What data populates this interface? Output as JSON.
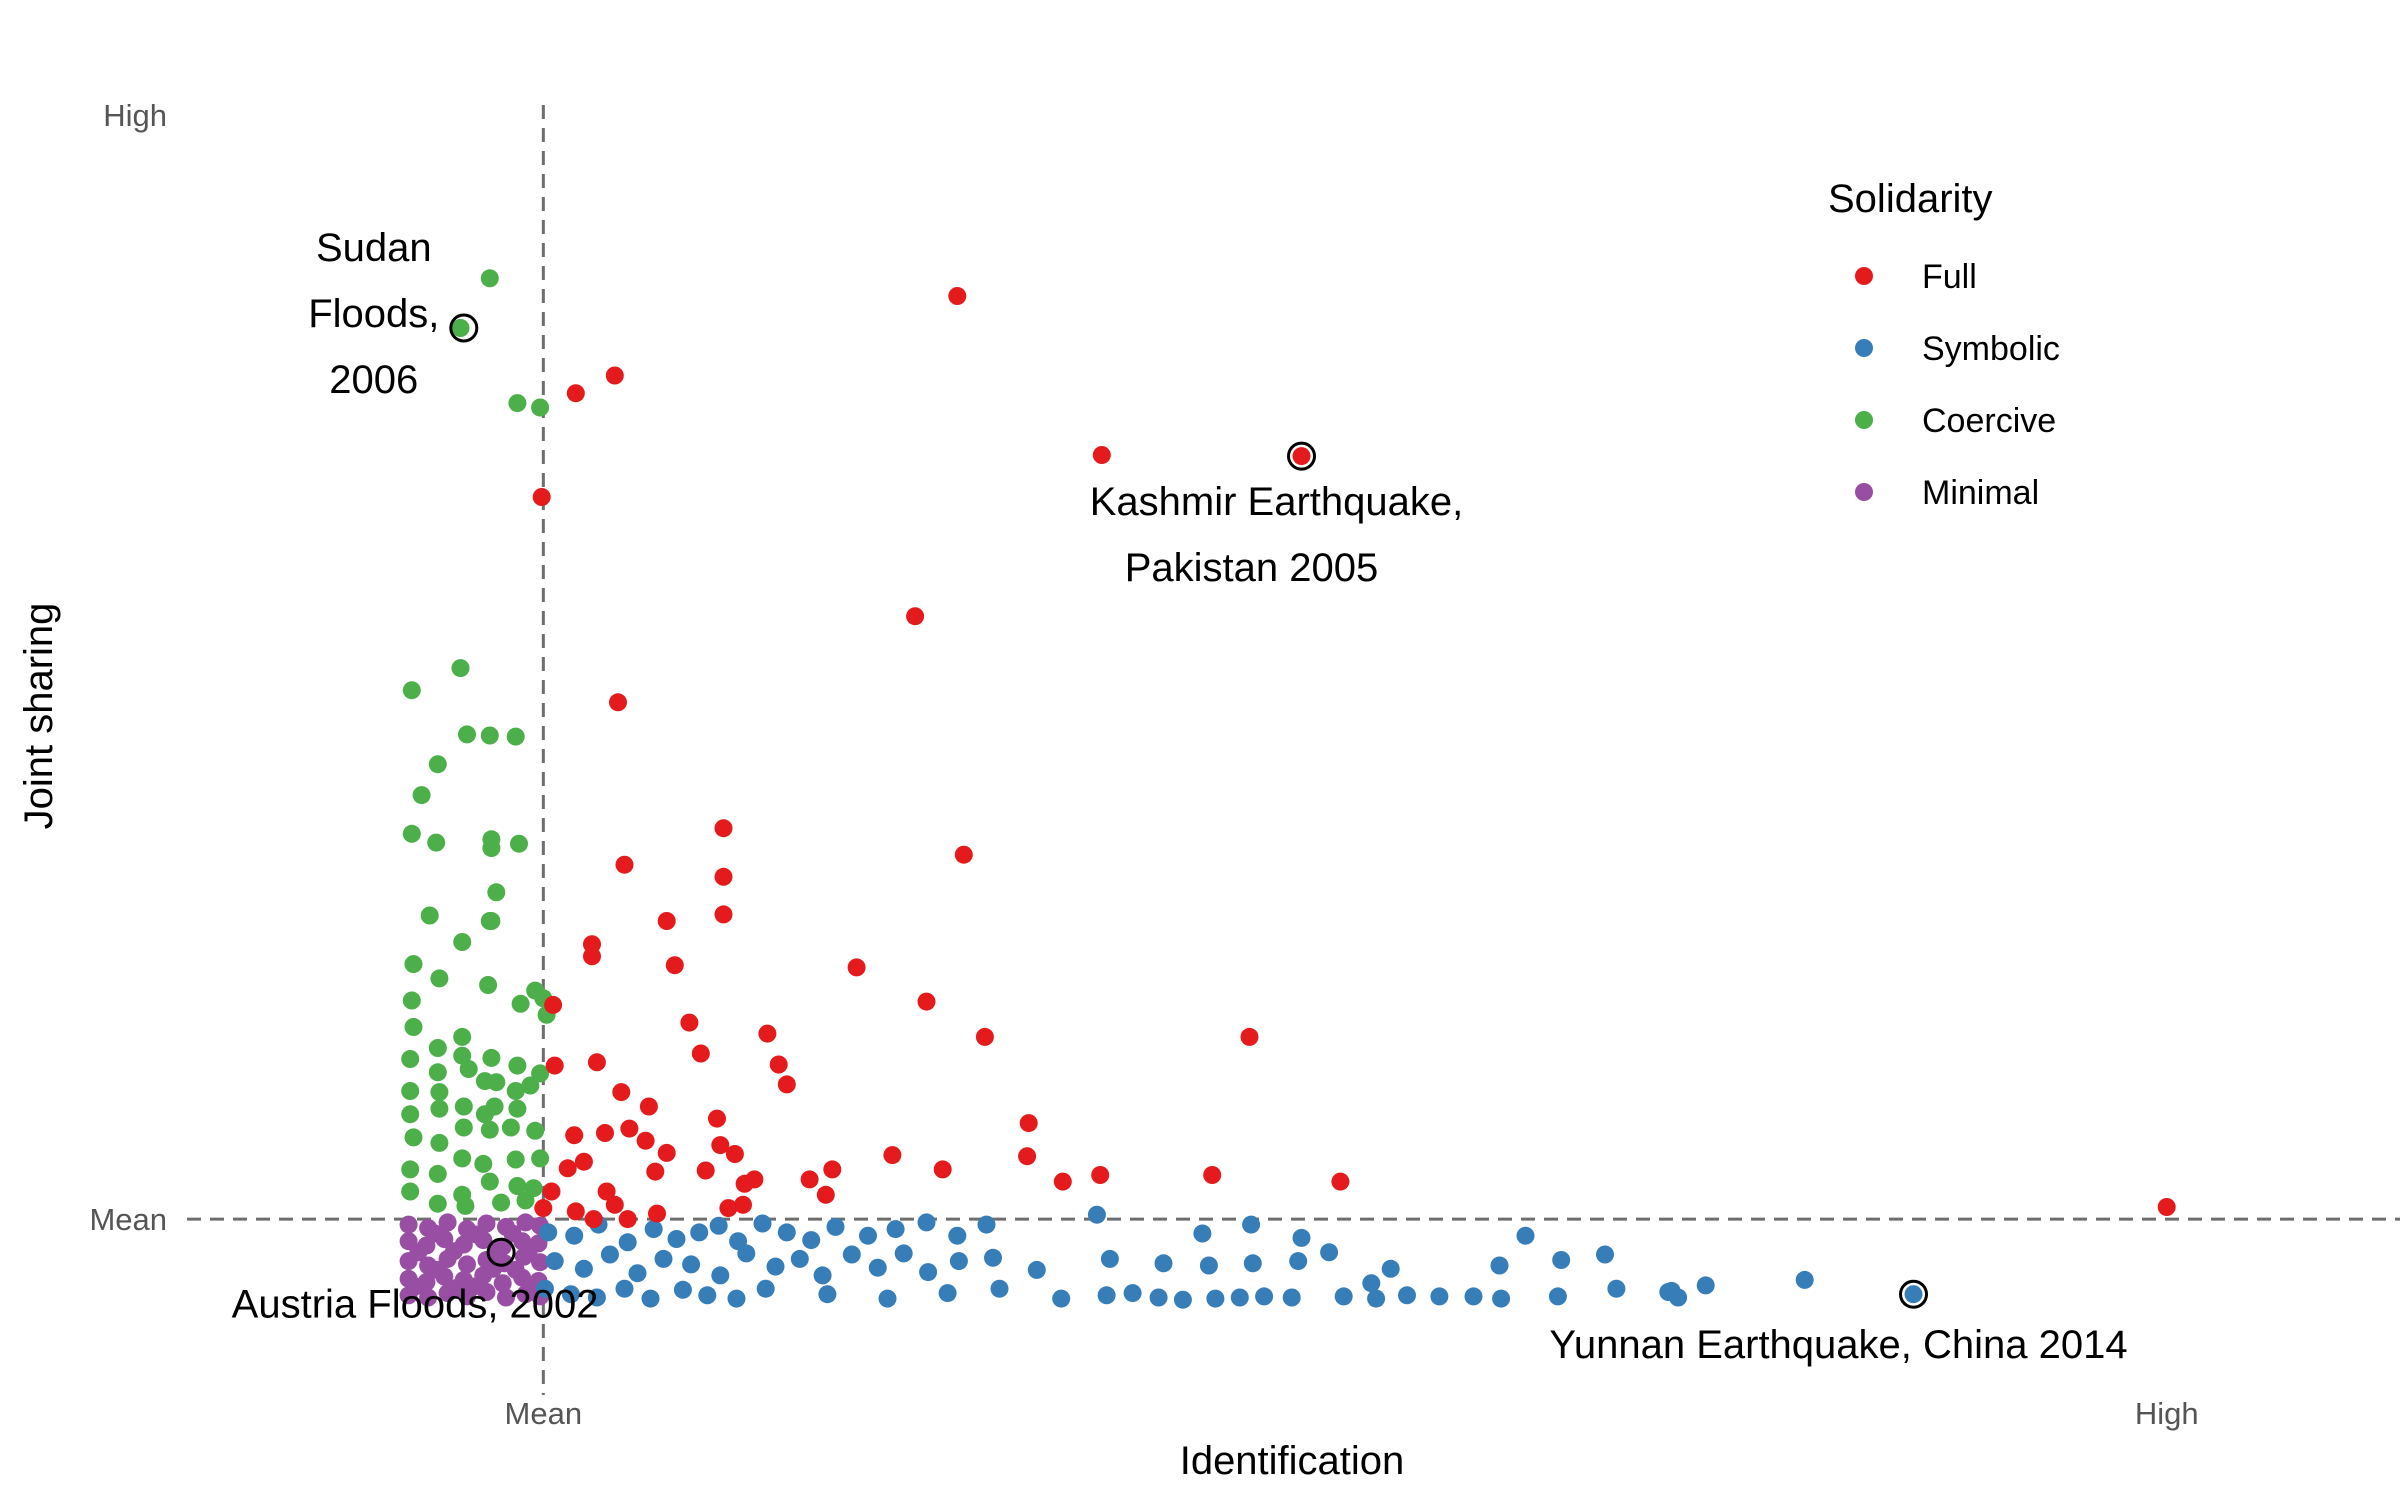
{
  "chart_data": {
    "type": "scatter",
    "title": "",
    "xlabel": "Identification",
    "ylabel": "Joint sharing",
    "x_ticks": [
      {
        "label": "Mean",
        "value": 0
      },
      {
        "label": "High",
        "value": 1
      }
    ],
    "y_ticks": [
      {
        "label": "Mean",
        "value": 0
      },
      {
        "label": "High",
        "value": 1
      }
    ],
    "xlim": [
      -0.2195,
      1.1437
    ],
    "ylim": [
      -0.1801,
      1.0633
    ],
    "grid": false,
    "reference_lines": [
      {
        "axis": "x",
        "value": 0,
        "style": "dashed"
      },
      {
        "axis": "y",
        "value": 0,
        "style": "dashed"
      }
    ],
    "legend": {
      "title": "Solidarity",
      "position": "top-right"
    },
    "colors": {
      "Full": "#E41A1C",
      "Symbolic": "#377EB8",
      "Coercive": "#4DAF4A",
      "Minimal": "#984EA3"
    },
    "series": [
      {
        "name": "Full",
        "points": [
          [
            0.255,
            0.836
          ],
          [
            0.044,
            0.764
          ],
          [
            0.02,
            0.748
          ],
          [
            0.344,
            0.692
          ],
          [
            0.467,
            0.691
          ],
          [
            -0.001,
            0.654
          ],
          [
            0.229,
            0.546
          ],
          [
            0.046,
            0.468
          ],
          [
            0.259,
            0.33
          ],
          [
            0.111,
            0.354
          ],
          [
            0.111,
            0.31
          ],
          [
            0.111,
            0.276
          ],
          [
            0.05,
            0.321
          ],
          [
            0.03,
            0.249
          ],
          [
            0.03,
            0.238
          ],
          [
            0.081,
            0.23
          ],
          [
            0.076,
            0.27
          ],
          [
            0.193,
            0.228
          ],
          [
            0.09,
            0.178
          ],
          [
            0.006,
            0.194
          ],
          [
            0.236,
            0.197
          ],
          [
            0.272,
            0.165
          ],
          [
            0.097,
            0.15
          ],
          [
            0.007,
            0.139
          ],
          [
            0.033,
            0.142
          ],
          [
            0.138,
            0.168
          ],
          [
            0.435,
            0.165
          ],
          [
            0.048,
            0.115
          ],
          [
            0.145,
            0.14
          ],
          [
            0.15,
            0.122
          ],
          [
            0.019,
            0.076
          ],
          [
            0.038,
            0.078
          ],
          [
            0.053,
            0.082
          ],
          [
            0.065,
            0.102
          ],
          [
            0.107,
            0.091
          ],
          [
            0.076,
            0.06
          ],
          [
            0.109,
            0.067
          ],
          [
            0.298,
            0.057
          ],
          [
            0.015,
            0.046
          ],
          [
            0.025,
            0.052
          ],
          [
            0.063,
            0.071
          ],
          [
            0.069,
            0.043
          ],
          [
            0.1,
            0.044
          ],
          [
            0.118,
            0.059
          ],
          [
            0.124,
            0.032
          ],
          [
            0.164,
            0.036
          ],
          [
            0.178,
            0.045
          ],
          [
            0.215,
            0.058
          ],
          [
            0.299,
            0.087
          ],
          [
            0.005,
            0.025
          ],
          [
            0.039,
            0.025
          ],
          [
            0.123,
            0.013
          ],
          [
            0.13,
            0.036
          ],
          [
            0.174,
            0.022
          ],
          [
            0.0,
            0.01
          ],
          [
            0.02,
            0.007
          ],
          [
            0.044,
            0.013
          ],
          [
            0.052,
            0.0
          ],
          [
            0.114,
            0.01
          ],
          [
            0.031,
            0.0
          ],
          [
            0.07,
            0.005
          ],
          [
            0.343,
            0.04
          ],
          [
            0.412,
            0.04
          ],
          [
            0.246,
            0.045
          ],
          [
            0.32,
            0.034
          ],
          [
            0.491,
            0.034
          ],
          [
            1.0,
            0.011
          ]
        ]
      },
      {
        "name": "Symbolic",
        "points": [
          [
            0.844,
            -0.068
          ],
          [
            0.003,
            -0.012
          ],
          [
            0.019,
            -0.015
          ],
          [
            0.034,
            -0.005
          ],
          [
            0.052,
            -0.021
          ],
          [
            0.068,
            -0.009
          ],
          [
            0.082,
            -0.018
          ],
          [
            0.096,
            -0.012
          ],
          [
            0.108,
            -0.006
          ],
          [
            0.12,
            -0.02
          ],
          [
            0.135,
            -0.004
          ],
          [
            0.15,
            -0.012
          ],
          [
            0.165,
            -0.019
          ],
          [
            0.18,
            -0.007
          ],
          [
            0.2,
            -0.015
          ],
          [
            0.217,
            -0.009
          ],
          [
            0.236,
            -0.003
          ],
          [
            0.255,
            -0.015
          ],
          [
            0.273,
            -0.005
          ],
          [
            0.341,
            0.004
          ],
          [
            0.406,
            -0.013
          ],
          [
            0.436,
            -0.005
          ],
          [
            0.467,
            -0.017
          ],
          [
            0.605,
            -0.015
          ],
          [
            0.007,
            -0.038
          ],
          [
            0.025,
            -0.045
          ],
          [
            0.041,
            -0.032
          ],
          [
            0.058,
            -0.049
          ],
          [
            0.074,
            -0.036
          ],
          [
            0.091,
            -0.041
          ],
          [
            0.109,
            -0.051
          ],
          [
            0.125,
            -0.031
          ],
          [
            0.143,
            -0.043
          ],
          [
            0.158,
            -0.036
          ],
          [
            0.172,
            -0.051
          ],
          [
            0.19,
            -0.032
          ],
          [
            0.206,
            -0.044
          ],
          [
            0.222,
            -0.031
          ],
          [
            0.237,
            -0.048
          ],
          [
            0.256,
            -0.038
          ],
          [
            0.277,
            -0.035
          ],
          [
            0.304,
            -0.046
          ],
          [
            0.349,
            -0.036
          ],
          [
            0.382,
            -0.04
          ],
          [
            0.41,
            -0.042
          ],
          [
            0.437,
            -0.04
          ],
          [
            0.465,
            -0.038
          ],
          [
            0.484,
            -0.03
          ],
          [
            0.589,
            -0.042
          ],
          [
            0.627,
            -0.037
          ],
          [
            0.654,
            -0.032
          ],
          [
            0.695,
            -0.065
          ],
          [
            0.716,
            -0.06
          ],
          [
            0.001,
            -0.063
          ],
          [
            0.017,
            -0.068
          ],
          [
            0.033,
            -0.071
          ],
          [
            0.05,
            -0.063
          ],
          [
            0.066,
            -0.072
          ],
          [
            0.086,
            -0.064
          ],
          [
            0.101,
            -0.069
          ],
          [
            0.119,
            -0.072
          ],
          [
            0.137,
            -0.063
          ],
          [
            0.175,
            -0.068
          ],
          [
            0.212,
            -0.072
          ],
          [
            0.249,
            -0.067
          ],
          [
            0.281,
            -0.063
          ],
          [
            0.319,
            -0.072
          ],
          [
            0.347,
            -0.069
          ],
          [
            0.363,
            -0.067
          ],
          [
            0.379,
            -0.071
          ],
          [
            0.394,
            -0.073
          ],
          [
            0.414,
            -0.072
          ],
          [
            0.429,
            -0.071
          ],
          [
            0.444,
            -0.07
          ],
          [
            0.461,
            -0.071
          ],
          [
            0.493,
            -0.07
          ],
          [
            0.513,
            -0.072
          ],
          [
            0.532,
            -0.069
          ],
          [
            0.552,
            -0.07
          ],
          [
            0.573,
            -0.07
          ],
          [
            0.59,
            -0.072
          ],
          [
            0.625,
            -0.07
          ],
          [
            0.661,
            -0.063
          ],
          [
            0.693,
            -0.066
          ],
          [
            0.777,
            -0.055
          ],
          [
            0.699,
            -0.071
          ],
          [
            0.51,
            -0.058
          ],
          [
            0.522,
            -0.045
          ]
        ]
      },
      {
        "name": "Coercive",
        "points": [
          [
            -0.033,
            0.852
          ],
          [
            -0.051,
            0.807
          ],
          [
            -0.016,
            0.739
          ],
          [
            -0.002,
            0.735
          ],
          [
            -0.051,
            0.499
          ],
          [
            -0.081,
            0.479
          ],
          [
            -0.047,
            0.439
          ],
          [
            -0.033,
            0.438
          ],
          [
            -0.017,
            0.437
          ],
          [
            -0.065,
            0.412
          ],
          [
            -0.075,
            0.384
          ],
          [
            -0.081,
            0.349
          ],
          [
            -0.066,
            0.341
          ],
          [
            -0.032,
            0.344
          ],
          [
            -0.032,
            0.336
          ],
          [
            -0.015,
            0.34
          ],
          [
            -0.029,
            0.296
          ],
          [
            -0.033,
            0.27
          ],
          [
            -0.05,
            0.251
          ],
          [
            -0.08,
            0.231
          ],
          [
            -0.064,
            0.218
          ],
          [
            -0.034,
            0.212
          ],
          [
            -0.005,
            0.207
          ],
          [
            -0.014,
            0.195
          ],
          [
            -0.081,
            0.198
          ],
          [
            -0.08,
            0.174
          ],
          [
            -0.05,
            0.165
          ],
          [
            -0.05,
            0.148
          ],
          [
            -0.032,
            0.146
          ],
          [
            -0.065,
            0.155
          ],
          [
            -0.065,
            0.133
          ],
          [
            -0.082,
            0.145
          ],
          [
            -0.046,
            0.136
          ],
          [
            -0.016,
            0.139
          ],
          [
            -0.002,
            0.132
          ],
          [
            -0.064,
            0.115
          ],
          [
            -0.082,
            0.116
          ],
          [
            -0.017,
            0.116
          ],
          [
            -0.029,
            0.124
          ],
          [
            -0.036,
            0.125
          ],
          [
            -0.008,
            0.121
          ],
          [
            -0.049,
            0.102
          ],
          [
            -0.064,
            0.1
          ],
          [
            -0.082,
            0.095
          ],
          [
            -0.03,
            0.102
          ],
          [
            -0.036,
            0.095
          ],
          [
            -0.016,
            0.1
          ],
          [
            -0.049,
            0.083
          ],
          [
            -0.08,
            0.074
          ],
          [
            -0.064,
            0.069
          ],
          [
            -0.033,
            0.081
          ],
          [
            -0.02,
            0.083
          ],
          [
            -0.005,
            0.08
          ],
          [
            -0.082,
            0.045
          ],
          [
            -0.05,
            0.055
          ],
          [
            -0.037,
            0.05
          ],
          [
            -0.017,
            0.054
          ],
          [
            -0.002,
            0.055
          ],
          [
            -0.065,
            0.041
          ],
          [
            -0.082,
            0.025
          ],
          [
            -0.05,
            0.022
          ],
          [
            -0.033,
            0.034
          ],
          [
            -0.016,
            0.03
          ],
          [
            -0.006,
            0.028
          ],
          [
            -0.065,
            0.014
          ],
          [
            -0.048,
            0.012
          ],
          [
            -0.026,
            0.015
          ],
          [
            -0.011,
            0.017
          ],
          [
            0.002,
            0.185
          ],
          [
            -0.032,
            0.27
          ],
          [
            -0.07,
            0.275
          ],
          [
            0.0,
            0.2
          ]
        ]
      },
      {
        "name": "Minimal",
        "points": [
          [
            -0.083,
            -0.005
          ],
          [
            -0.071,
            -0.008
          ],
          [
            -0.059,
            -0.003
          ],
          [
            -0.047,
            -0.009
          ],
          [
            -0.035,
            -0.004
          ],
          [
            -0.023,
            -0.007
          ],
          [
            -0.011,
            -0.003
          ],
          [
            -0.002,
            -0.006
          ],
          [
            -0.083,
            -0.02
          ],
          [
            -0.072,
            -0.024
          ],
          [
            -0.061,
            -0.018
          ],
          [
            -0.049,
            -0.023
          ],
          [
            -0.037,
            -0.019
          ],
          [
            -0.025,
            -0.025
          ],
          [
            -0.013,
            -0.02
          ],
          [
            -0.003,
            -0.022
          ],
          [
            -0.083,
            -0.038
          ],
          [
            -0.071,
            -0.042
          ],
          [
            -0.059,
            -0.036
          ],
          [
            -0.047,
            -0.041
          ],
          [
            -0.035,
            -0.037
          ],
          [
            -0.024,
            -0.04
          ],
          [
            -0.012,
            -0.034
          ],
          [
            -0.002,
            -0.039
          ],
          [
            -0.083,
            -0.054
          ],
          [
            -0.072,
            -0.057
          ],
          [
            -0.061,
            -0.052
          ],
          [
            -0.049,
            -0.055
          ],
          [
            -0.037,
            -0.051
          ],
          [
            -0.025,
            -0.058
          ],
          [
            -0.013,
            -0.053
          ],
          [
            -0.003,
            -0.056
          ],
          [
            -0.083,
            -0.069
          ],
          [
            -0.071,
            -0.071
          ],
          [
            -0.059,
            -0.067
          ],
          [
            -0.047,
            -0.07
          ],
          [
            -0.035,
            -0.066
          ],
          [
            -0.023,
            -0.071
          ],
          [
            -0.011,
            -0.068
          ],
          [
            -0.002,
            -0.07
          ],
          [
            -0.077,
            -0.03
          ],
          [
            -0.065,
            -0.046
          ],
          [
            -0.053,
            -0.062
          ],
          [
            -0.041,
            -0.014
          ],
          [
            -0.029,
            -0.03
          ],
          [
            -0.017,
            -0.046
          ],
          [
            -0.007,
            -0.062
          ],
          [
            -0.079,
            -0.061
          ],
          [
            -0.067,
            -0.013
          ],
          [
            -0.055,
            -0.029
          ],
          [
            -0.043,
            -0.061
          ],
          [
            -0.031,
            -0.045
          ],
          [
            -0.019,
            -0.013
          ],
          [
            -0.009,
            -0.029
          ]
        ]
      }
    ],
    "annotations": [
      {
        "lines": [
          "Sudan",
          "Floods,",
          "2006"
        ],
        "point": [
          -0.049,
          0.807
        ],
        "series": "Coercive",
        "anchor": "middle"
      },
      {
        "lines": [
          "Kashmir Earthquake,",
          "Pakistan 2005"
        ],
        "point": [
          0.467,
          0.691
        ],
        "series": "Full",
        "anchor": "middle"
      },
      {
        "lines": [
          "Austria Floods, 2002"
        ],
        "point": [
          -0.026,
          -0.03
        ],
        "series": "Minimal",
        "anchor": "middle"
      },
      {
        "lines": [
          "Yunnan Earthquake,  China 2014"
        ],
        "point": [
          0.844,
          -0.068
        ],
        "series": "Symbolic",
        "anchor": "middle"
      }
    ]
  }
}
